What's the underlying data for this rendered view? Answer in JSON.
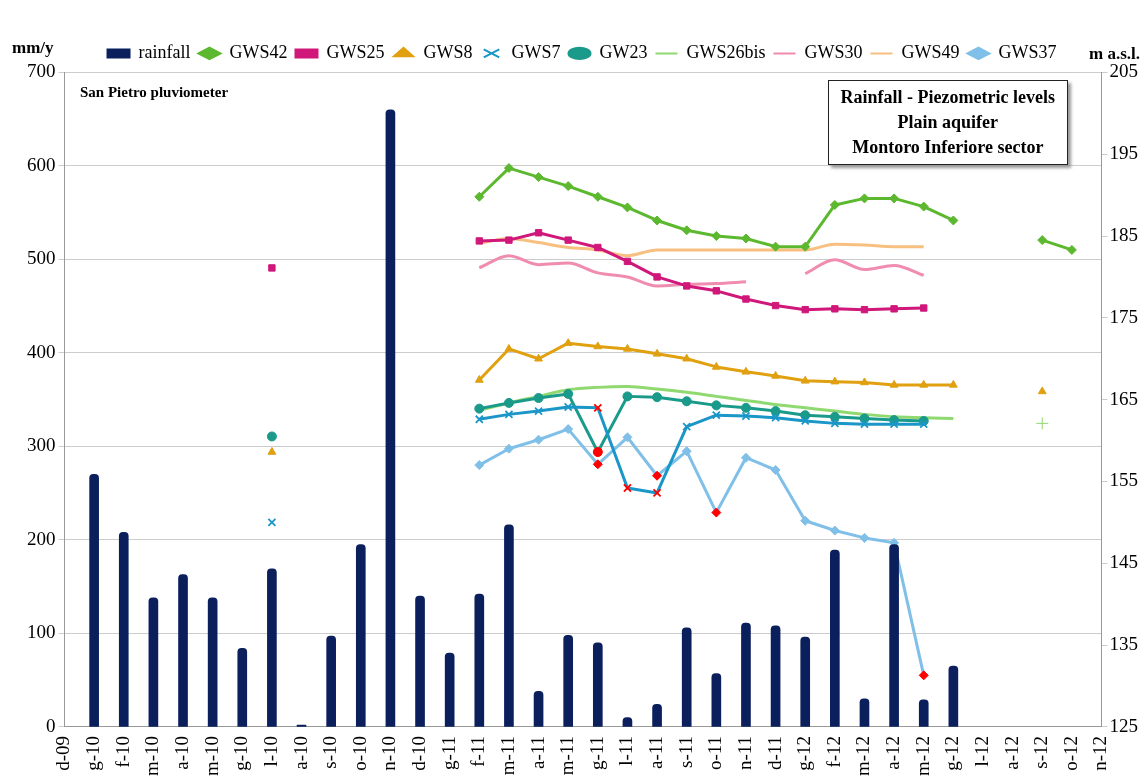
{
  "chart_data": {
    "type": "line",
    "title": "Rainfall - Piezometric levels\nPlain aquifer\nMontoro Inferiore sector",
    "ylabel": "mm/y",
    "y2label": "m a.s.l.",
    "annotations": [
      "San Pietro pluviometer"
    ],
    "categories": [
      "d-09",
      "g-10",
      "f-10",
      "m-10",
      "a-10",
      "m-10",
      "g-10",
      "l-10",
      "a-10",
      "s-10",
      "o-10",
      "n-10",
      "d-10",
      "g-11",
      "f-11",
      "m-11",
      "a-11",
      "m-11",
      "g-11",
      "l-11",
      "a-11",
      "s-11",
      "o-11",
      "n-11",
      "d-11",
      "g-12",
      "f-12",
      "m-12",
      "a-12",
      "m-12",
      "g-12",
      "l-12",
      "a-12",
      "s-12",
      "o-12",
      "n-12"
    ],
    "series": [
      {
        "name": "rainfall",
        "type": "bar",
        "color": "#0a1f5c",
        "values": [
          null,
          270,
          208,
          138,
          163,
          138,
          84,
          169,
          2,
          97,
          195,
          660,
          140,
          79,
          142,
          216,
          38,
          98,
          90,
          10,
          24,
          106,
          57,
          111,
          108,
          96,
          189,
          30,
          195,
          29,
          65,
          null,
          null,
          null,
          null,
          null
        ]
      },
      {
        "name": "GWS42",
        "axis": "y2",
        "marker": "diamond",
        "color": "#5cb82e",
        "values": [
          null,
          null,
          null,
          null,
          null,
          null,
          null,
          null,
          null,
          null,
          null,
          null,
          null,
          null,
          189.8,
          193.3,
          192.2,
          191.1,
          189.8,
          188.5,
          186.9,
          185.7,
          185.0,
          184.7,
          183.7,
          183.7,
          188.8,
          189.6,
          189.6,
          188.6,
          186.9,
          null,
          null,
          184.5,
          183.3,
          null
        ]
      },
      {
        "name": "GWS25",
        "axis": "y2",
        "marker": "square",
        "color": "#d0177a",
        "values": [
          null,
          null,
          null,
          null,
          null,
          null,
          null,
          181.1,
          null,
          null,
          null,
          null,
          null,
          null,
          184.4,
          184.5,
          185.4,
          184.5,
          183.6,
          181.9,
          180.0,
          178.9,
          178.3,
          177.3,
          176.5,
          176.0,
          176.1,
          176.0,
          176.1,
          176.2,
          null,
          null,
          null,
          null,
          null,
          null
        ]
      },
      {
        "name": "GWS8",
        "axis": "y2",
        "marker": "triangle",
        "color": "#e0a010",
        "values": [
          null,
          null,
          null,
          null,
          null,
          null,
          null,
          158.6,
          null,
          null,
          null,
          null,
          null,
          null,
          167.4,
          171.2,
          170.0,
          171.9,
          171.5,
          171.2,
          170.6,
          170.0,
          169.0,
          168.4,
          167.9,
          167.3,
          167.2,
          167.1,
          166.8,
          166.8,
          166.8,
          null,
          null,
          166.0,
          null,
          null
        ]
      },
      {
        "name": "GWS7",
        "axis": "y2",
        "marker": "cross",
        "color": "#1a96c8",
        "values": [
          null,
          null,
          null,
          null,
          null,
          null,
          null,
          150.0,
          null,
          null,
          null,
          null,
          null,
          null,
          162.6,
          163.2,
          163.6,
          164.1,
          164.0,
          154.2,
          153.6,
          161.7,
          163.1,
          163.0,
          162.8,
          162.4,
          162.1,
          162.0,
          162.0,
          162.0,
          null,
          null,
          null,
          null,
          null,
          null
        ],
        "colors": [
          "#1a96c8",
          "#1a96c8",
          "#1a96c8",
          "#1a96c8",
          "#1a96c8",
          "#1a96c8",
          "#1a96c8",
          "#1a96c8",
          "#1a96c8",
          "#1a96c8",
          "#1a96c8",
          "#1a96c8",
          "#1a96c8",
          "#1a96c8",
          "#1a96c8",
          "#1a96c8",
          "#1a96c8",
          "#1a96c8",
          "#ff0000",
          "#ff0000",
          "#ff0000",
          "#1a96c8",
          "#1a96c8",
          "#1a96c8",
          "#1a96c8",
          "#1a96c8",
          "#1a96c8",
          "#1a96c8",
          "#1a96c8",
          "#1a96c8",
          "#1a96c8",
          "#1a96c8",
          "#1a96c8",
          "#1a96c8",
          "#1a96c8",
          "#1a96c8"
        ]
      },
      {
        "name": "GW23",
        "axis": "y2",
        "marker": "circle",
        "color": "#1a9a8a",
        "values": [
          null,
          null,
          null,
          null,
          null,
          null,
          null,
          160.5,
          null,
          null,
          null,
          null,
          null,
          null,
          163.9,
          164.6,
          165.2,
          165.7,
          158.6,
          165.4,
          165.3,
          164.8,
          164.3,
          164.0,
          163.6,
          163.1,
          162.9,
          162.7,
          162.5,
          162.4,
          null,
          null,
          null,
          null,
          null,
          null
        ],
        "colors": [
          "#1a9a8a",
          "#1a9a8a",
          "#1a9a8a",
          "#1a9a8a",
          "#1a9a8a",
          "#1a9a8a",
          "#1a9a8a",
          "#1a9a8a",
          "#1a9a8a",
          "#1a9a8a",
          "#1a9a8a",
          "#1a9a8a",
          "#1a9a8a",
          "#1a9a8a",
          "#1a9a8a",
          "#1a9a8a",
          "#1a9a8a",
          "#1a9a8a",
          "#ff0000",
          "#1a9a8a",
          "#1a9a8a",
          "#1a9a8a",
          "#1a9a8a",
          "#1a9a8a",
          "#1a9a8a",
          "#1a9a8a",
          "#1a9a8a",
          "#1a9a8a",
          "#1a9a8a",
          "#1a9a8a",
          "#1a9a8a",
          "#1a9a8a",
          "#1a9a8a",
          "#1a9a8a",
          "#1a9a8a",
          "#1a9a8a"
        ]
      },
      {
        "name": "GWS26bis",
        "axis": "y2",
        "marker": "none",
        "color": "#90d870",
        "values": [
          null,
          null,
          null,
          null,
          null,
          null,
          null,
          null,
          null,
          null,
          null,
          null,
          null,
          null,
          163.7,
          164.6,
          165.4,
          166.2,
          166.5,
          166.6,
          166.3,
          165.9,
          165.4,
          164.9,
          164.4,
          164.0,
          163.6,
          163.2,
          162.9,
          162.8,
          162.7,
          null,
          null,
          162.1,
          null,
          null
        ]
      },
      {
        "name": "GWS30",
        "axis": "y2",
        "marker": "none",
        "color": "#f08cb0",
        "values": [
          null,
          null,
          null,
          null,
          null,
          null,
          null,
          null,
          null,
          null,
          null,
          null,
          null,
          null,
          181.1,
          182.6,
          181.5,
          181.7,
          180.5,
          180.0,
          178.9,
          179.1,
          179.2,
          179.4,
          null,
          180.4,
          182.1,
          180.9,
          181.4,
          180.2,
          null,
          null,
          null,
          null,
          null,
          null
        ]
      },
      {
        "name": "GWS49",
        "axis": "y2",
        "marker": "none",
        "color": "#f8c080",
        "values": [
          null,
          null,
          null,
          null,
          null,
          null,
          null,
          null,
          null,
          null,
          null,
          null,
          null,
          null,
          184.1,
          184.7,
          184.2,
          183.6,
          183.3,
          182.6,
          183.3,
          183.3,
          183.3,
          183.3,
          183.3,
          183.3,
          184.0,
          183.9,
          183.7,
          183.7,
          null,
          null,
          null,
          null,
          null,
          null
        ]
      },
      {
        "name": "GWS37",
        "axis": "y2",
        "marker": "diamond",
        "color": "#80c0e8",
        "values": [
          null,
          null,
          null,
          null,
          null,
          null,
          null,
          null,
          null,
          null,
          null,
          null,
          null,
          null,
          157.0,
          159.0,
          160.1,
          161.4,
          157.1,
          160.4,
          155.7,
          158.7,
          151.2,
          157.9,
          156.4,
          150.2,
          149.0,
          148.1,
          147.5,
          131.3,
          null,
          null,
          null,
          null,
          null,
          null
        ],
        "colors": [
          "#80c0e8",
          "#80c0e8",
          "#80c0e8",
          "#80c0e8",
          "#80c0e8",
          "#80c0e8",
          "#80c0e8",
          "#80c0e8",
          "#80c0e8",
          "#80c0e8",
          "#80c0e8",
          "#80c0e8",
          "#80c0e8",
          "#80c0e8",
          "#80c0e8",
          "#80c0e8",
          "#80c0e8",
          "#80c0e8",
          "#ff0000",
          "#80c0e8",
          "#ff0000",
          "#80c0e8",
          "#ff0000",
          "#80c0e8",
          "#80c0e8",
          "#80c0e8",
          "#80c0e8",
          "#80c0e8",
          "#80c0e8",
          "#ff0000",
          "#80c0e8",
          "#80c0e8",
          "#80c0e8",
          "#80c0e8",
          "#80c0e8",
          "#80c0e8"
        ]
      }
    ],
    "ylim": [
      0,
      700
    ],
    "yticks": [
      0,
      100,
      200,
      300,
      400,
      500,
      600,
      700
    ],
    "y2lim": [
      125,
      205
    ],
    "y2ticks": [
      125,
      135,
      145,
      155,
      165,
      175,
      185,
      195,
      205
    ],
    "grid": "y",
    "legend": "top"
  }
}
